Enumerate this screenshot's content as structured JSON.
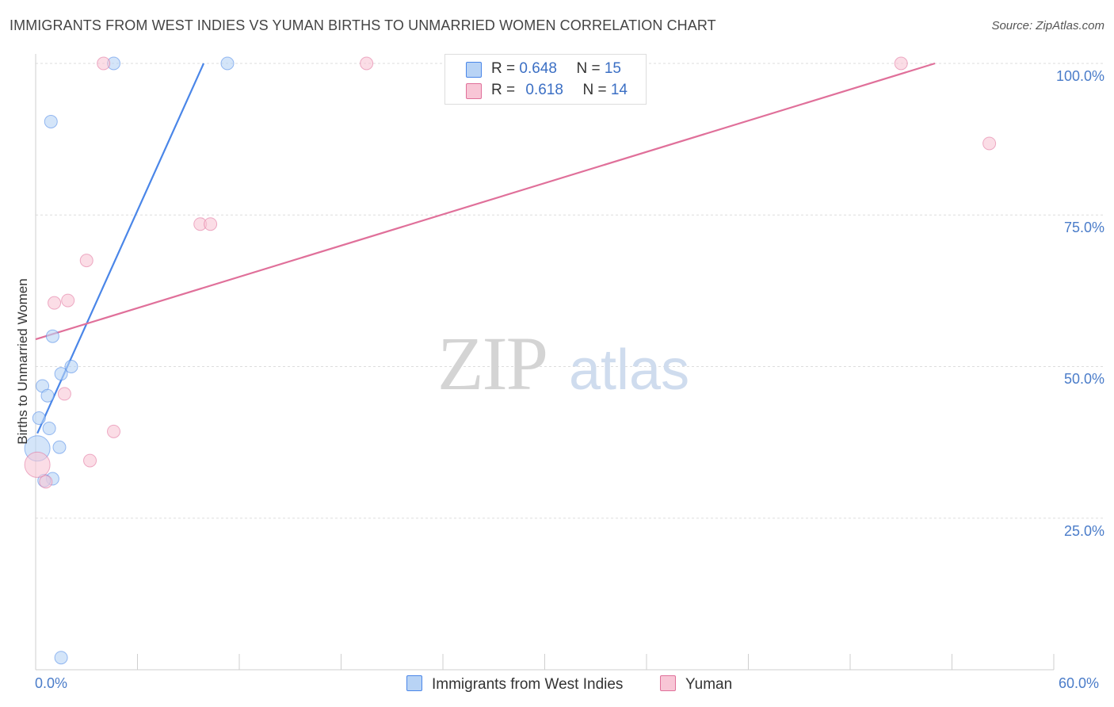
{
  "title": "IMMIGRANTS FROM WEST INDIES VS YUMAN BIRTHS TO UNMARRIED WOMEN CORRELATION CHART",
  "source": "Source: ZipAtlas.com",
  "watermark": {
    "zip": "ZIP",
    "atlas": "atlas"
  },
  "legend": {
    "series1": {
      "r_label": "R = ",
      "r_value": "0.648",
      "n_label": "N = ",
      "n_value": "15"
    },
    "series2": {
      "r_label": "R = ",
      "r_value": "0.618",
      "n_label": "N = ",
      "n_value": "14"
    }
  },
  "chart_data": {
    "type": "scatter",
    "title": "IMMIGRANTS FROM WEST INDIES VS YUMAN BIRTHS TO UNMARRIED WOMEN CORRELATION CHART",
    "xlabel": "",
    "ylabel": "Births to Unmarried Women",
    "xlim": [
      0,
      60
    ],
    "ylim": [
      0,
      100
    ],
    "x_tick_labels": [
      "0.0%",
      "60.0%"
    ],
    "y_tick_labels": [
      "100.0%",
      "75.0%",
      "50.0%",
      "25.0%"
    ],
    "y_tick_values": [
      100,
      75,
      50,
      25
    ],
    "x_minor_ticks": [
      6,
      12,
      18,
      24,
      30,
      36,
      42,
      48,
      54,
      60
    ],
    "grid": true,
    "series": [
      {
        "name": "Immigrants from West Indies",
        "color": "#4a86e8",
        "fill": "#b8d3f5",
        "r": "0.648",
        "n": "15",
        "points": [
          {
            "x": 4.6,
            "y": 100.0
          },
          {
            "x": 11.3,
            "y": 100.0
          },
          {
            "x": 0.9,
            "y": 90.4
          },
          {
            "x": 1.0,
            "y": 55.0
          },
          {
            "x": 2.1,
            "y": 50.0
          },
          {
            "x": 1.5,
            "y": 48.8
          },
          {
            "x": 0.4,
            "y": 46.8
          },
          {
            "x": 0.7,
            "y": 45.2
          },
          {
            "x": 0.2,
            "y": 41.5
          },
          {
            "x": 0.8,
            "y": 39.8
          },
          {
            "x": 1.4,
            "y": 36.7
          },
          {
            "x": 0.1,
            "y": 36.5,
            "big": true
          },
          {
            "x": 1.0,
            "y": 31.5
          },
          {
            "x": 0.5,
            "y": 31.2
          },
          {
            "x": 1.5,
            "y": 2.0
          }
        ],
        "trend": {
          "x1": 0.1,
          "y1": 39.0,
          "x2": 9.9,
          "y2": 100.0
        }
      },
      {
        "name": "Yuman",
        "color": "#e0709a",
        "fill": "#f8c6d6",
        "r": "0.618",
        "n": "14",
        "points": [
          {
            "x": 4.0,
            "y": 100.0
          },
          {
            "x": 19.5,
            "y": 100.0
          },
          {
            "x": 51.0,
            "y": 100.0
          },
          {
            "x": 56.2,
            "y": 86.8
          },
          {
            "x": 9.7,
            "y": 73.5
          },
          {
            "x": 10.3,
            "y": 73.5
          },
          {
            "x": 3.0,
            "y": 67.5
          },
          {
            "x": 1.9,
            "y": 60.9
          },
          {
            "x": 1.1,
            "y": 60.5
          },
          {
            "x": 1.7,
            "y": 45.5
          },
          {
            "x": 4.6,
            "y": 39.3
          },
          {
            "x": 3.2,
            "y": 34.5
          },
          {
            "x": 0.1,
            "y": 33.8,
            "big": true
          },
          {
            "x": 0.6,
            "y": 31.0
          }
        ],
        "trend": {
          "x1": 0.0,
          "y1": 54.5,
          "x2": 53.0,
          "y2": 100.0
        }
      }
    ]
  }
}
